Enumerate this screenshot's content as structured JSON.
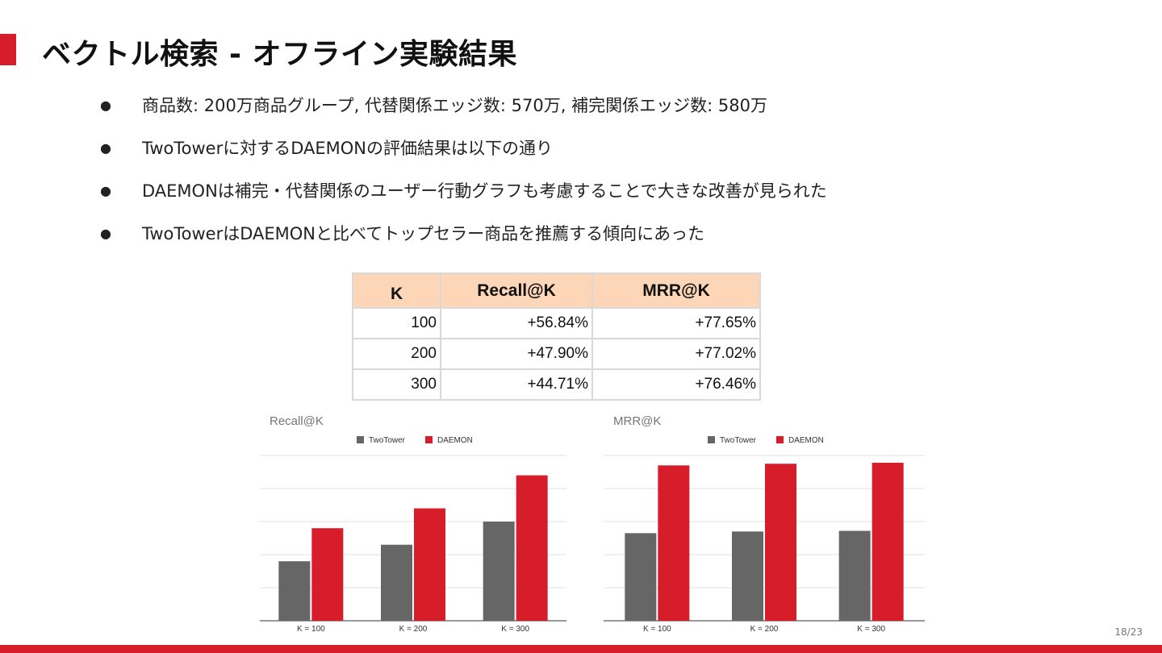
{
  "slide": {
    "title": "ベクトル検索 - オフライン実験結果",
    "bullet_glyph": "●",
    "bullets": [
      "商品数: 200万商品グループ, 代替関係エッジ数: 570万, 補完関係エッジ数: 580万",
      "TwoTowerに対するDAEMONの評価結果は以下の通り",
      "DAEMONは補完・代替関係のユーザー行動グラフも考慮することで大きな改善が見られた",
      "TwoTowerはDAEMONと比べてトップセラー商品を推薦する傾向にあった"
    ],
    "page": "18/23"
  },
  "table": {
    "headers": [
      "K",
      "Recall@K",
      "MRR@K"
    ],
    "rows": [
      [
        "100",
        "+56.84%",
        "+77.65%"
      ],
      [
        "200",
        "+47.90%",
        "+77.02%"
      ],
      [
        "300",
        "+44.71%",
        "+76.46%"
      ]
    ]
  },
  "colors": {
    "accent": "#d71c2a",
    "twotower": "#666666",
    "daemon": "#d71c2a",
    "header_bg": "#fcd6b6"
  },
  "chart_data": [
    {
      "type": "bar",
      "title": "Recall@K",
      "categories": [
        "K = 100",
        "K = 200",
        "K = 300"
      ],
      "series": [
        {
          "name": "TwoTower",
          "values": [
            1.8,
            2.3,
            3.0
          ]
        },
        {
          "name": "DAEMON",
          "values": [
            2.8,
            3.4,
            4.4
          ]
        }
      ],
      "ylim": [
        0,
        5
      ],
      "grid": true,
      "legend": "top-center"
    },
    {
      "type": "bar",
      "title": "MRR@K",
      "categories": [
        "K = 100",
        "K = 200",
        "K = 300"
      ],
      "series": [
        {
          "name": "TwoTower",
          "values": [
            2.65,
            2.7,
            2.72
          ]
        },
        {
          "name": "DAEMON",
          "values": [
            4.7,
            4.75,
            4.78
          ]
        }
      ],
      "ylim": [
        0,
        5
      ],
      "grid": true,
      "legend": "top-center"
    }
  ]
}
